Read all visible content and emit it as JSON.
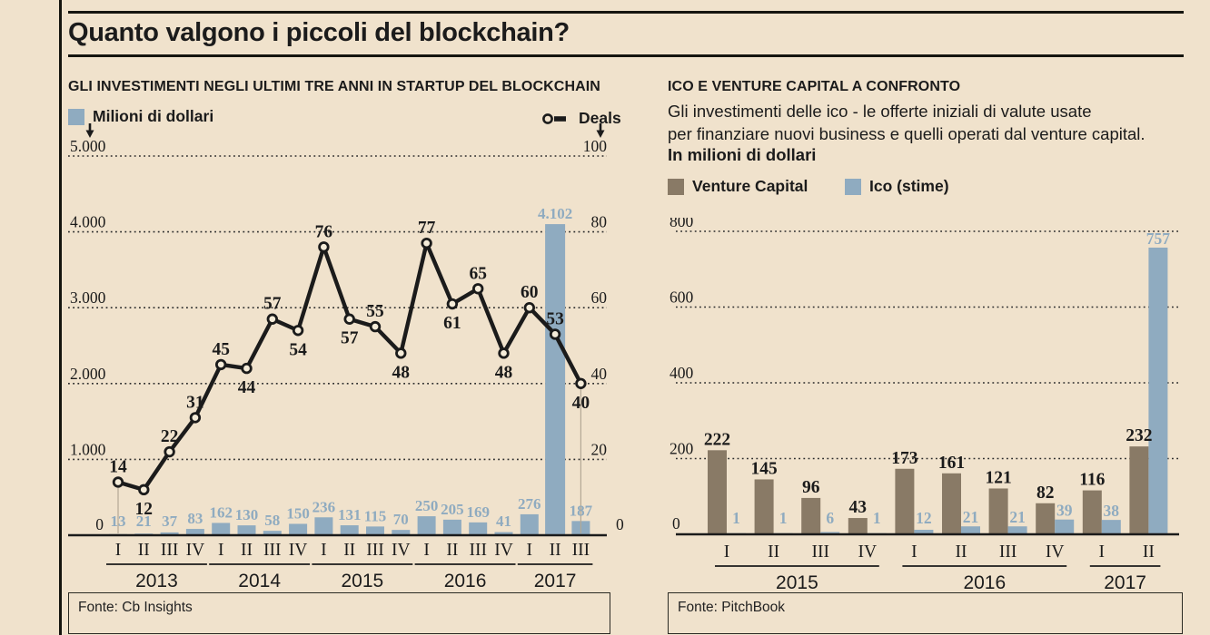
{
  "page": {
    "title": "Quanto valgono i piccoli del blockchain?",
    "colors": {
      "paper": "#f0e2cc",
      "ink": "#1b1b1b",
      "blue": "#8fabc0",
      "brown": "#897a66",
      "leader": "#b3a895",
      "grid": "#2b2b2b"
    }
  },
  "left_chart": {
    "heading": "GLI INVESTIMENTI NEGLI ULTIMI TRE ANNI IN STARTUP DEL BLOCKCHAIN",
    "source": "Fonte: Cb Insights"
  },
  "right_chart": {
    "heading": "ICO E VENTURE CAPITAL A CONFRONTO",
    "description_lines": [
      "Gli investimenti delle ico - le offerte iniziali di valute usate",
      "per finanziare nuovi business e quelli operati dal venture capital."
    ],
    "unit_label": "In milioni di dollari",
    "source": "Fonte: PitchBook"
  },
  "chart_data": [
    {
      "type": "bar",
      "title": "GLI INVESTIMENTI NEGLI ULTIMI TRE ANNI IN STARTUP DEL BLOCKCHAIN",
      "categories": [
        "I",
        "II",
        "III",
        "IV",
        "I",
        "II",
        "III",
        "IV",
        "I",
        "II",
        "III",
        "IV",
        "I",
        "II",
        "III",
        "IV",
        "I",
        "II",
        "III"
      ],
      "year_groups": [
        {
          "label": "2013",
          "count": 4
        },
        {
          "label": "2014",
          "count": 4
        },
        {
          "label": "2015",
          "count": 4
        },
        {
          "label": "2016",
          "count": 4
        },
        {
          "label": "2017",
          "count": 3
        }
      ],
      "series": [
        {
          "name": "Milioni di dollari",
          "type": "bar",
          "values": [
            13,
            21,
            37,
            83,
            162,
            130,
            58,
            150,
            236,
            131,
            115,
            70,
            250,
            205,
            169,
            41,
            276,
            4102,
            187
          ],
          "labels": [
            "13",
            "21",
            "37",
            "83",
            "162",
            "130",
            "58",
            "150",
            "236",
            "131",
            "115",
            "70",
            "250",
            "205",
            "169",
            "41",
            "276",
            "4.102",
            "187"
          ],
          "color": "#8fabc0",
          "axis": "left"
        },
        {
          "name": "Deals",
          "type": "line",
          "values": [
            14,
            12,
            22,
            31,
            45,
            44,
            57,
            54,
            76,
            57,
            55,
            48,
            77,
            61,
            65,
            48,
            60,
            53,
            40
          ],
          "labels": [
            "14",
            "12",
            "22",
            "31",
            "45",
            "44",
            "57",
            "54",
            "76",
            "57",
            "55",
            "48",
            "77",
            "61",
            "65",
            "48",
            "60",
            "53",
            "40"
          ],
          "label_positions": [
            "above",
            "below",
            "above",
            "above",
            "above",
            "below",
            "above",
            "below",
            "above",
            "below",
            "above",
            "below",
            "above",
            "below",
            "above",
            "below",
            "above",
            "above",
            "below"
          ],
          "leader_line_indices": [
            0,
            18
          ],
          "color": "#1b1b1b",
          "axis": "right"
        }
      ],
      "left_axis": {
        "range": [
          0,
          5000
        ],
        "tick_values": [
          5000,
          4000,
          3000,
          2000,
          1000
        ],
        "tick_labels": [
          "5.000",
          "4.000",
          "3.000",
          "2.000",
          "1.000"
        ],
        "zero_label": "0"
      },
      "right_axis": {
        "range": [
          0,
          100
        ],
        "tick_values": [
          100,
          80,
          60,
          40,
          20
        ],
        "tick_labels": [
          "100",
          "80",
          "60",
          "40",
          "20"
        ],
        "zero_label": "0"
      },
      "gridlines": "dotted"
    },
    {
      "type": "bar",
      "title": "ICO E VENTURE CAPITAL A CONFRONTO",
      "categories": [
        "I",
        "II",
        "III",
        "IV",
        "I",
        "II",
        "III",
        "IV",
        "I",
        "II"
      ],
      "year_groups": [
        {
          "label": "2015",
          "count": 4
        },
        {
          "label": "2016",
          "count": 4
        },
        {
          "label": "2017",
          "count": 2
        }
      ],
      "series": [
        {
          "name": "Venture Capital",
          "type": "bar",
          "values": [
            222,
            145,
            96,
            43,
            173,
            161,
            121,
            82,
            116,
            232
          ],
          "labels": [
            "222",
            "145",
            "96",
            "43",
            "173",
            "161",
            "121",
            "82",
            "116",
            "232"
          ],
          "color": "#897a66"
        },
        {
          "name": "Ico (stime)",
          "type": "bar",
          "values": [
            1,
            1,
            6,
            1,
            12,
            21,
            21,
            39,
            38,
            757
          ],
          "labels": [
            "1",
            "1",
            "6",
            "1",
            "12",
            "21",
            "21",
            "39",
            "38",
            "757"
          ],
          "color": "#8fabc0"
        }
      ],
      "y_axis": {
        "range": [
          0,
          800
        ],
        "tick_values": [
          800,
          600,
          400,
          200
        ],
        "tick_labels": [
          "800",
          "600",
          "400",
          "200"
        ],
        "zero_label": "0"
      },
      "ylabel": "In milioni di dollari",
      "gridlines": "dotted"
    }
  ]
}
